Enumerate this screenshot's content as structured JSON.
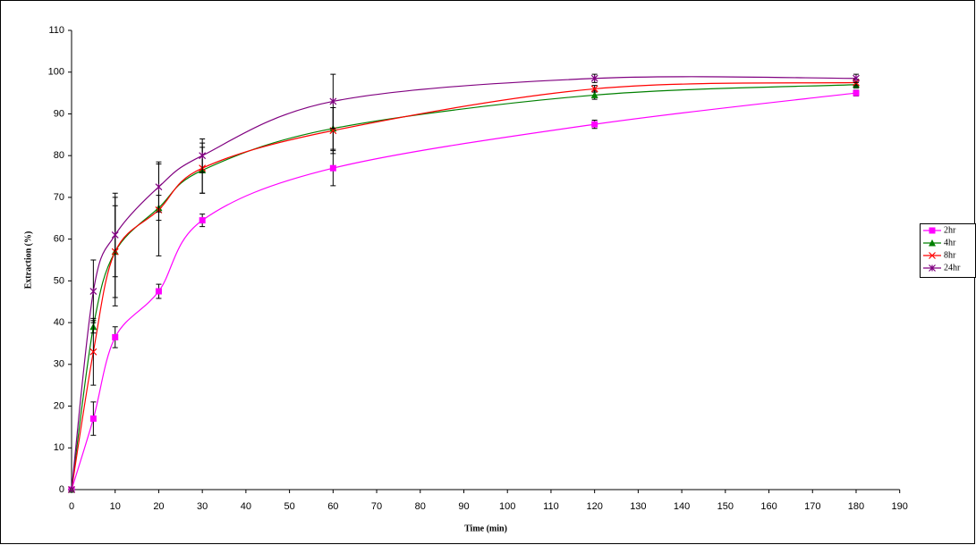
{
  "chart_data": {
    "type": "line",
    "x_label": "Time (min)",
    "y_label": "Extraction (%)",
    "x": [
      0,
      5,
      10,
      20,
      30,
      60,
      120,
      180
    ],
    "series": [
      {
        "name": "2hr",
        "color": "#ff00ff",
        "marker": "square",
        "values": [
          0,
          17,
          36.5,
          47.5,
          64.5,
          77,
          87.5,
          95
        ],
        "errors": [
          0,
          4,
          2.5,
          1.7,
          1.5,
          4.2,
          1,
          0.7
        ]
      },
      {
        "name": "4hr",
        "color": "#008000",
        "marker": "triangle",
        "values": [
          0,
          39,
          57,
          67.5,
          76.5,
          86.5,
          94.5,
          97
        ],
        "errors": [
          0,
          1.5,
          11,
          3,
          5.5,
          5,
          1,
          0.8
        ]
      },
      {
        "name": "8hr",
        "color": "#ff0000",
        "marker": "x",
        "values": [
          0,
          33,
          57,
          67,
          77,
          86,
          96,
          97.5
        ],
        "errors": [
          0,
          8,
          13,
          11,
          6,
          5.5,
          0.8,
          0.8
        ]
      },
      {
        "name": "24hr",
        "color": "#800080",
        "marker": "star",
        "values": [
          0,
          47.5,
          61,
          72.5,
          80,
          93,
          98.5,
          98.5
        ],
        "errors": [
          0,
          7.5,
          10,
          6,
          4,
          6.5,
          1,
          1
        ]
      }
    ],
    "xlim": [
      0,
      190
    ],
    "xticks": [
      0,
      10,
      20,
      30,
      40,
      50,
      60,
      70,
      80,
      90,
      100,
      110,
      120,
      130,
      140,
      150,
      160,
      170,
      180,
      190
    ],
    "ylim": [
      0,
      110
    ],
    "yticks": [
      0,
      10,
      20,
      30,
      40,
      50,
      60,
      70,
      80,
      90,
      100,
      110
    ],
    "grid": false,
    "legend": "right"
  }
}
